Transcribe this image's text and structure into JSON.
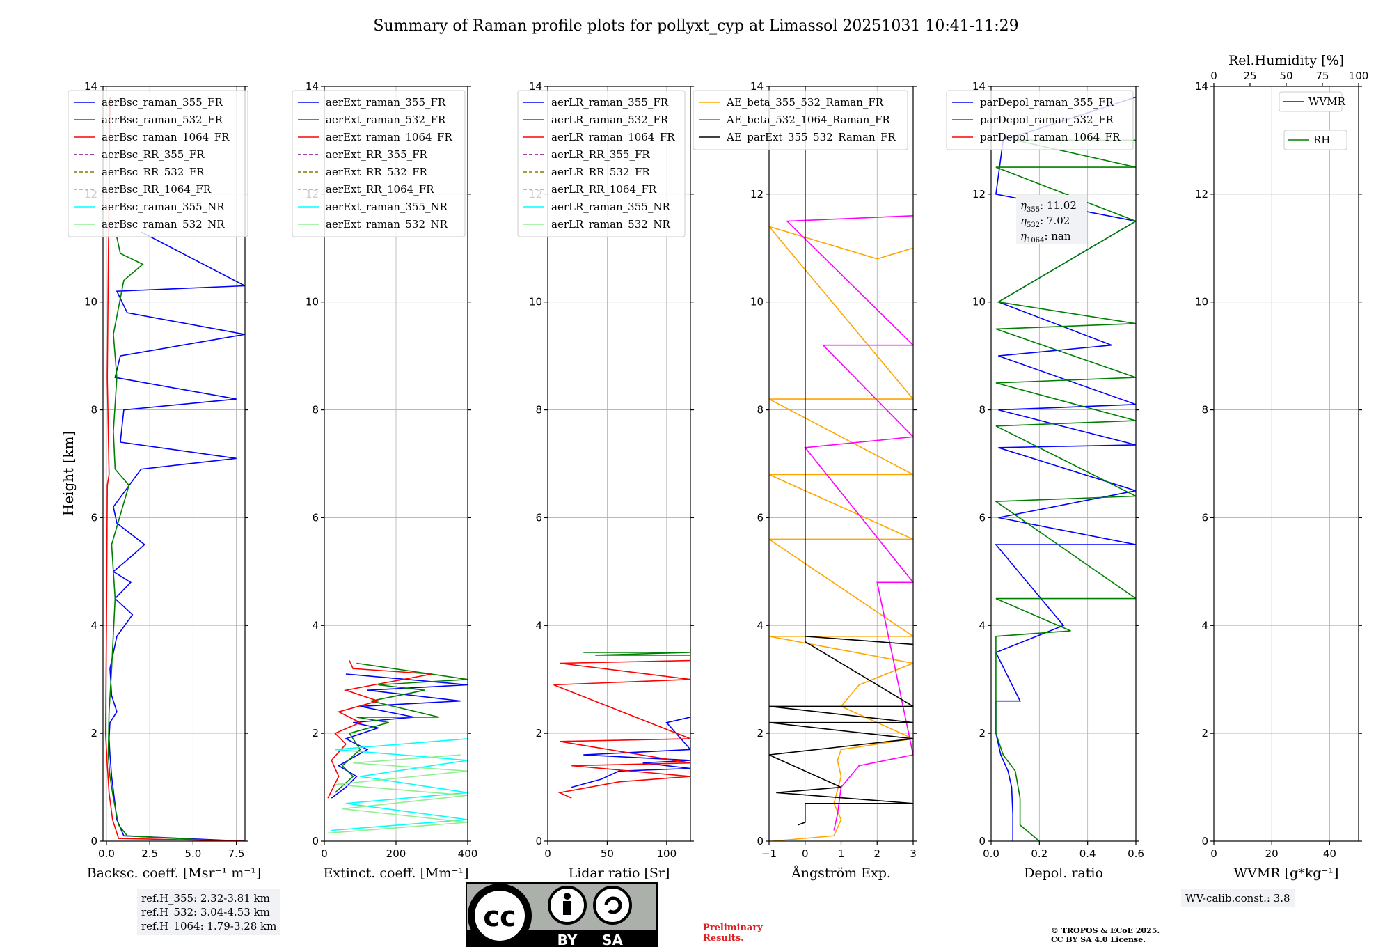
{
  "figure": {
    "title": "Summary of Raman profile plots for pollyxt_cyp at Limassol 20251031 10:41-11:29",
    "ylabel": "Height [km]",
    "y_ticks": [
      "0",
      "2",
      "4",
      "6",
      "8",
      "10",
      "12",
      "14"
    ],
    "ref_heights": [
      "ref.H_355: 2.32-3.81 km",
      "ref.H_532: 3.04-4.53 km",
      "ref.H_1064: 1.79-3.28 km"
    ],
    "wv_calib": "WV-calib.const.: 3.8",
    "preliminary": [
      "Preliminary",
      "Results."
    ],
    "copyright": [
      "© TROPOS & ECoE 2025.",
      "CC BY SA 4.0 License."
    ],
    "license_badge": {
      "cc": "cc",
      "by": "BY",
      "sa": "SA"
    },
    "eta_box": {
      "eta355": "11.02",
      "eta532": "7.02",
      "eta1064": "nan"
    },
    "colors": {
      "blue": "#0000ff",
      "green": "#008000",
      "red": "#ff0000",
      "purple": "#800080",
      "olive": "#808000",
      "salmon": "#fa8072",
      "cyan": "#00ffff",
      "lightgreen": "#90ee90",
      "orange": "#ffa500",
      "magenta": "#ff00ff",
      "black": "#000000"
    }
  },
  "chart_data": [
    {
      "type": "line",
      "id": "bsc",
      "xlabel": "Backsc. coeff. [Msr⁻¹ m⁻¹]",
      "xlim": [
        -0.2,
        8
      ],
      "xticks": [
        0,
        2.5,
        5,
        7.5
      ],
      "xtick_labels": [
        "0.0",
        "2.5",
        "5.0",
        "7.5"
      ],
      "ylim": [
        0,
        14
      ],
      "legend": [
        {
          "name": "aerBsc_raman_355_FR",
          "color": "blue",
          "dash": false
        },
        {
          "name": "aerBsc_raman_532_FR",
          "color": "green",
          "dash": false
        },
        {
          "name": "aerBsc_raman_1064_FR",
          "color": "red",
          "dash": false
        },
        {
          "name": "aerBsc_RR_355_FR",
          "color": "purple",
          "dash": true
        },
        {
          "name": "aerBsc_RR_532_FR",
          "color": "olive",
          "dash": true
        },
        {
          "name": "aerBsc_RR_1064_FR",
          "color": "salmon",
          "dash": true
        },
        {
          "name": "aerBsc_raman_355_NR",
          "color": "cyan",
          "dash": false
        },
        {
          "name": "aerBsc_raman_532_NR",
          "color": "lightgreen",
          "dash": false
        }
      ],
      "series": [
        {
          "name": "aerBsc_raman_355_FR",
          "color": "blue",
          "x": [
            8,
            1.0,
            0.6,
            0.45,
            0.3,
            0.2,
            0.15,
            0.2,
            0.6,
            0.3,
            0.2,
            0.6,
            1.5,
            0.5,
            1.4,
            0.4,
            1.5,
            2.2,
            0.6,
            0.4,
            2.0,
            7.5,
            0.8,
            1.0,
            7.5,
            0.5,
            0.8,
            8,
            1.2,
            0.6,
            8,
            2.0
          ],
          "y": [
            0,
            0.1,
            0.4,
            0.8,
            1.2,
            1.6,
            1.9,
            2.2,
            2.4,
            2.7,
            3.2,
            3.8,
            4.2,
            4.5,
            4.8,
            5.0,
            5.3,
            5.5,
            5.9,
            6.2,
            6.9,
            7.1,
            7.4,
            8.0,
            8.2,
            8.6,
            9.0,
            9.4,
            9.8,
            10.2,
            10.3,
            11.3
          ]
        },
        {
          "name": "aerBsc_raman_532_FR",
          "color": "green",
          "x": [
            7,
            1.2,
            0.7,
            0.4,
            0.2,
            0.1,
            0.15,
            0.3,
            0.5,
            0.3,
            1.3,
            0.5,
            0.4,
            0.6,
            0.4,
            1.0,
            2.1,
            0.8,
            0.6
          ],
          "y": [
            0,
            0.1,
            0.3,
            0.8,
            1.2,
            1.6,
            2.4,
            3.2,
            4.5,
            5.5,
            6.6,
            6.9,
            7.6,
            8.6,
            9.4,
            10.4,
            10.7,
            10.9,
            11.2
          ]
        },
        {
          "name": "aerBsc_raman_1064_FR",
          "color": "red",
          "x": [
            8,
            0.7,
            0.35,
            0.15,
            0.05,
            -0.05,
            0.0,
            0.05,
            0.15,
            0.05,
            0.1,
            0.2
          ],
          "y": [
            0,
            0.05,
            0.4,
            0.9,
            1.4,
            2.0,
            4.0,
            6.6,
            6.8,
            8.6,
            10.5,
            13.8
          ]
        }
      ]
    },
    {
      "type": "line",
      "id": "ext",
      "xlabel": "Extinct. coeff. [Mm⁻¹]",
      "xlim": [
        0,
        400
      ],
      "xticks": [
        0,
        200,
        400
      ],
      "xtick_labels": [
        "0",
        "200",
        "400"
      ],
      "ylim": [
        0,
        14
      ],
      "legend": [
        {
          "name": "aerExt_raman_355_FR",
          "color": "blue",
          "dash": false
        },
        {
          "name": "aerExt_raman_532_FR",
          "color": "green",
          "dash": false
        },
        {
          "name": "aerExt_raman_1064_FR",
          "color": "red",
          "dash": false
        },
        {
          "name": "aerExt_RR_355_FR",
          "color": "purple",
          "dash": true
        },
        {
          "name": "aerExt_RR_532_FR",
          "color": "olive",
          "dash": true
        },
        {
          "name": "aerExt_RR_1064_FR",
          "color": "salmon",
          "dash": true
        },
        {
          "name": "aerExt_raman_355_NR",
          "color": "cyan",
          "dash": false
        },
        {
          "name": "aerExt_raman_532_NR",
          "color": "lightgreen",
          "dash": false
        }
      ],
      "series": [
        {
          "name": "aerExt_raman_355_FR",
          "color": "blue",
          "x": [
            20,
            60,
            90,
            40,
            120,
            60,
            150,
            80,
            250,
            100,
            380,
            120,
            400,
            60
          ],
          "y": [
            0.8,
            1.0,
            1.2,
            1.4,
            1.7,
            1.9,
            2.1,
            2.2,
            2.3,
            2.5,
            2.6,
            2.8,
            2.9,
            3.1
          ]
        },
        {
          "name": "aerExt_raman_532_FR",
          "color": "green",
          "x": [
            30,
            80,
            50,
            100,
            70,
            180,
            90,
            320,
            130,
            280,
            150,
            400,
            90
          ],
          "y": [
            0.9,
            1.2,
            1.4,
            1.7,
            2.0,
            2.2,
            2.3,
            2.3,
            2.6,
            2.8,
            2.9,
            3.0,
            3.3
          ]
        },
        {
          "name": "aerExt_raman_1064_FR",
          "color": "red",
          "x": [
            10,
            40,
            20,
            60,
            30,
            100,
            40,
            150,
            60,
            300,
            80,
            70
          ],
          "y": [
            0.8,
            1.2,
            1.5,
            1.8,
            2.0,
            2.2,
            2.4,
            2.6,
            2.8,
            3.1,
            3.2,
            3.35
          ]
        },
        {
          "name": "aerExt_raman_355_NR",
          "color": "cyan",
          "x": [
            20,
            400,
            60,
            400,
            100,
            400,
            30,
            400
          ],
          "y": [
            0.2,
            0.4,
            0.7,
            0.9,
            1.2,
            1.5,
            1.7,
            1.9
          ]
        },
        {
          "name": "aerExt_raman_532_NR",
          "color": "lightgreen",
          "x": [
            10,
            400,
            50,
            400,
            30,
            400,
            80,
            380
          ],
          "y": [
            0.15,
            0.35,
            0.6,
            0.85,
            1.05,
            1.3,
            1.45,
            1.6
          ]
        }
      ]
    },
    {
      "type": "line",
      "id": "lr",
      "xlabel": "Lidar ratio [Sr]",
      "xlim": [
        0,
        120
      ],
      "xticks": [
        0,
        50,
        100
      ],
      "xtick_labels": [
        "0",
        "50",
        "100"
      ],
      "ylim": [
        0,
        14
      ],
      "legend": [
        {
          "name": "aerLR_raman_355_FR",
          "color": "blue",
          "dash": false
        },
        {
          "name": "aerLR_raman_532_FR",
          "color": "green",
          "dash": false
        },
        {
          "name": "aerLR_raman_1064_FR",
          "color": "red",
          "dash": false
        },
        {
          "name": "aerLR_RR_355_FR",
          "color": "purple",
          "dash": true
        },
        {
          "name": "aerLR_RR_532_FR",
          "color": "olive",
          "dash": true
        },
        {
          "name": "aerLR_RR_1064_FR",
          "color": "salmon",
          "dash": true
        },
        {
          "name": "aerLR_raman_355_NR",
          "color": "cyan",
          "dash": false
        },
        {
          "name": "aerLR_raman_532_NR",
          "color": "lightgreen",
          "dash": false
        }
      ],
      "series": [
        {
          "name": "aerLR_raman_355_FR",
          "color": "blue",
          "x": [
            20,
            45,
            60,
            120,
            80,
            120,
            30,
            120,
            100,
            120
          ],
          "y": [
            1.0,
            1.15,
            1.3,
            1.35,
            1.45,
            1.5,
            1.6,
            1.7,
            2.2,
            2.3
          ]
        },
        {
          "name": "aerLR_raman_532_FR",
          "color": "green",
          "x": [
            30,
            120,
            40,
            120
          ],
          "y": [
            3.5,
            3.5,
            3.45,
            3.45
          ]
        },
        {
          "name": "aerLR_raman_1064_FR",
          "color": "red",
          "x": [
            20,
            10,
            60,
            120,
            20,
            120,
            10,
            120,
            5,
            120,
            10,
            120
          ],
          "y": [
            0.8,
            0.9,
            1.1,
            1.2,
            1.4,
            1.45,
            1.85,
            1.9,
            2.9,
            3.0,
            3.3,
            3.35
          ]
        }
      ]
    },
    {
      "type": "line",
      "id": "ae",
      "xlabel": "Ångström Exp.",
      "xlim": [
        -1,
        3
      ],
      "xticks": [
        -1,
        0,
        1,
        2,
        3
      ],
      "xtick_labels": [
        "−1",
        "0",
        "1",
        "2",
        "3"
      ],
      "ylim": [
        0,
        14
      ],
      "legend": [
        {
          "name": "AE_beta_355_532_Raman_FR",
          "color": "orange",
          "dash": false
        },
        {
          "name": "AE_beta_532_1064_Raman_FR",
          "color": "magenta",
          "dash": false
        },
        {
          "name": "AE_parExt_355_532_Raman_FR",
          "color": "black",
          "dash": false
        }
      ],
      "series": [
        {
          "name": "AE_beta_355_532_Raman_FR",
          "color": "orange",
          "x": [
            -0.9,
            0.8,
            1.0,
            0.8,
            1.0,
            0.9,
            1.0,
            3.0,
            1.0,
            1.5,
            3.0,
            -1.0,
            3.0,
            -1.0,
            3.0,
            -1.0,
            3.0,
            -1.0,
            3.0,
            -1.0,
            2.0,
            3.0
          ],
          "y": [
            0.0,
            0.1,
            0.4,
            0.7,
            1.2,
            1.5,
            1.7,
            1.9,
            2.5,
            2.9,
            3.3,
            3.8,
            3.8,
            5.6,
            5.6,
            6.8,
            6.8,
            8.2,
            8.2,
            11.4,
            10.8,
            11.0
          ]
        },
        {
          "name": "AE_beta_532_1064_Raman_FR",
          "color": "magenta",
          "x": [
            0.8,
            0.9,
            1.0,
            1.5,
            3.0,
            2.0,
            3.0,
            0.0,
            3.0,
            0.5,
            3.0,
            -0.5,
            3.0
          ],
          "y": [
            0.2,
            0.5,
            1.0,
            1.4,
            1.6,
            4.8,
            4.8,
            7.3,
            7.5,
            9.2,
            9.2,
            11.5,
            11.6
          ]
        },
        {
          "name": "AE_parExt_355_532_Raman_FR",
          "color": "black",
          "x": [
            -0.2,
            0.0,
            0.0,
            3.0,
            -0.8,
            1.0,
            -1.0,
            3.0,
            -1.0,
            3.0,
            -1.0,
            3.0,
            0.0,
            0.0,
            3.0,
            0.0,
            0.0
          ],
          "y": [
            0.3,
            0.35,
            0.7,
            0.7,
            0.9,
            1.0,
            1.6,
            1.9,
            2.2,
            2.2,
            2.5,
            2.5,
            3.7,
            3.8,
            3.65,
            3.8,
            14.0
          ]
        }
      ]
    },
    {
      "type": "line",
      "id": "depol",
      "xlabel": "Depol. ratio",
      "xlim": [
        0,
        0.6
      ],
      "xticks": [
        0,
        0.2,
        0.4,
        0.6
      ],
      "xtick_labels": [
        "0.0",
        "0.2",
        "0.4",
        "0.6"
      ],
      "ylim": [
        0,
        14
      ],
      "legend": [
        {
          "name": "parDepol_raman_355_FR",
          "color": "blue",
          "dash": false
        },
        {
          "name": "parDepol_raman_532_FR",
          "color": "green",
          "dash": false
        },
        {
          "name": "parDepol_raman_1064_FR",
          "color": "red",
          "dash": false
        }
      ],
      "series": [
        {
          "name": "parDepol_raman_355_FR",
          "color": "blue",
          "x": [
            0.09,
            0.09,
            0.085,
            0.07,
            0.04,
            0.02,
            0.02,
            0.12,
            0.02,
            0.3,
            0.02,
            0.6,
            0.03,
            0.6,
            0.03,
            0.6,
            0.03,
            0.6,
            0.03,
            0.5,
            0.03,
            0.6,
            0.02,
            0.05,
            0.6
          ],
          "y": [
            0.0,
            0.5,
            1.0,
            1.3,
            1.6,
            2.0,
            2.6,
            2.6,
            3.5,
            4.0,
            5.5,
            5.5,
            6.0,
            6.5,
            7.3,
            7.35,
            8.0,
            8.1,
            9.0,
            9.2,
            10.0,
            11.5,
            12.0,
            13.0,
            13.8
          ]
        },
        {
          "name": "parDepol_raman_532_FR",
          "color": "green",
          "x": [
            0.2,
            0.12,
            0.12,
            0.1,
            0.05,
            0.02,
            0.02,
            0.33,
            0.02,
            0.6,
            0.02,
            0.6,
            0.02,
            0.6,
            0.02,
            0.6,
            0.02,
            0.6,
            0.03,
            0.6,
            0.02,
            0.6,
            0.1,
            0.6
          ],
          "y": [
            0.0,
            0.3,
            0.8,
            1.3,
            1.6,
            2.0,
            3.8,
            3.9,
            4.5,
            4.5,
            6.3,
            6.4,
            7.7,
            7.8,
            8.5,
            8.6,
            9.5,
            9.6,
            10.0,
            11.5,
            12.5,
            12.5,
            13.0,
            13.0
          ]
        }
      ]
    },
    {
      "type": "line",
      "id": "wv",
      "xlabel": "WVMR [g*kg⁻¹]",
      "xlim": [
        0,
        50
      ],
      "xticks": [
        0,
        20,
        40
      ],
      "xtick_labels": [
        "0",
        "20",
        "40"
      ],
      "top_label": "Rel.Humidity [%]",
      "top_ticks": [
        0,
        25,
        50,
        75,
        100
      ],
      "top_tick_labels": [
        "0",
        "25",
        "50",
        "75",
        "100"
      ],
      "ylim": [
        0,
        14
      ],
      "legend": [
        {
          "name": "WVMR",
          "color": "blue",
          "dash": false
        },
        {
          "name": "RH",
          "color": "green",
          "dash": false
        }
      ],
      "series": []
    }
  ]
}
